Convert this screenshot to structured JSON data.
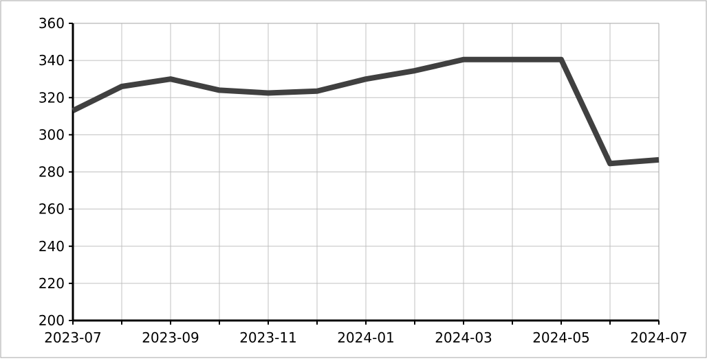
{
  "chart_data": {
    "type": "line",
    "title": "",
    "xlabel": "",
    "ylabel": "",
    "x": [
      "2023-07",
      "2023-08",
      "2023-09",
      "2023-10",
      "2023-11",
      "2023-12",
      "2024-01",
      "2024-02",
      "2024-03",
      "2024-04",
      "2024-05",
      "2024-06",
      "2024-07"
    ],
    "x_tick_labels": [
      "2023-07",
      "2023-09",
      "2023-11",
      "2024-01",
      "2024-03",
      "2024-05",
      "2024-07"
    ],
    "y_tick_labels": [
      "200",
      "220",
      "240",
      "260",
      "280",
      "300",
      "320",
      "340",
      "360"
    ],
    "ylim": [
      200,
      360
    ],
    "grid": true,
    "series": [
      {
        "values": [
          313,
          326,
          330,
          324,
          322.5,
          323.5,
          330,
          334.5,
          340.5,
          340.5,
          340.5,
          284.5,
          286.5
        ],
        "color": "#404040"
      }
    ]
  },
  "colors": {
    "grid": "#c0c0c0",
    "axis": "#000000",
    "frame": "#a6a6a6",
    "line": "#404040"
  }
}
